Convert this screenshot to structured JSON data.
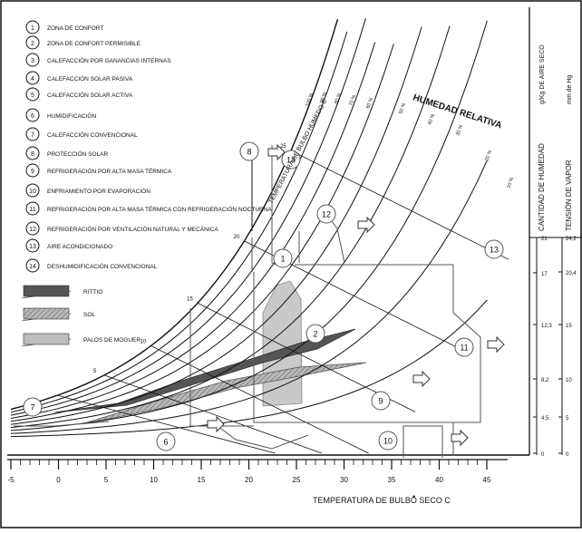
{
  "legend": [
    {
      "num": "1",
      "text": "ZONA DE CONFORT"
    },
    {
      "num": "2",
      "text": "ZONA DE CONFORT PERMISIBLE"
    },
    {
      "num": "3",
      "text": "CALEFACCIÓN POR GANANCIAS INTERNAS"
    },
    {
      "num": "4",
      "text": "CALEFACCIÓN SOLAR PASIVA"
    },
    {
      "num": "5",
      "text": "CALEFACCIÓN SOLAR ACTIVA"
    },
    {
      "num": "6",
      "text": "HUMIDIFICACIÓN"
    },
    {
      "num": "7",
      "text": "CALEFACCIÓN CONVENCIONAL"
    },
    {
      "num": "8",
      "text": "PROTECCIÓN SOLAR"
    },
    {
      "num": "9",
      "text": "REFRIGERACIÓN POR ALTA MASA TÉRMICA"
    },
    {
      "num": "10",
      "text": "ENFRIAMIENTO POR EVAPORACIÓN"
    },
    {
      "num": "11",
      "text": "REFRIGERACIÓN POR ALTA MASA TÉRMICA CON REFRIGERACIÓN NOCTURNA"
    },
    {
      "num": "12",
      "text": "REFRIGERACIÓN POR VENTILACIÓN NATURAL Y MECÁNICA"
    },
    {
      "num": "13",
      "text": "AIRE ACONDICIONADO"
    },
    {
      "num": "14",
      "text": "DESHUMIDIFICACIÓN CONVENCIONAL"
    }
  ],
  "shade_legend": [
    {
      "label": "RITTIO",
      "color": "#555555"
    },
    {
      "label": "SOL",
      "color": "#8a8a8a"
    },
    {
      "label": "PALOS DE MOGUER",
      "color": "#bdbdbd"
    }
  ],
  "chart_zone_labels": [
    "1",
    "2",
    "6",
    "7",
    "8",
    "9",
    "10",
    "11",
    "12",
    "13",
    "14"
  ],
  "xaxis": {
    "title": "TEMPERATURA DE BULBO SECO  C",
    "ticks": [
      "-5",
      "0",
      "5",
      "10",
      "15",
      "20",
      "25",
      "30",
      "35",
      "40",
      "45"
    ]
  },
  "curve_title": "HUMEDAD RELATIVA",
  "wet_bulb_label": "TEMPERATURA DE BULBO HÚMEDO  C",
  "rh_labels": [
    "100 %",
    "90 %",
    "80 %",
    "70 %",
    "60 %",
    "50 %",
    "40 %",
    "30 %",
    "20 %",
    "10 %"
  ],
  "right_axis_1": {
    "title": "CANTIDAD DE HUMEDAD",
    "unit": "g/Kg DE AIRE SECO",
    "ticks": [
      "21",
      "17",
      "12,3",
      "8,2",
      "4,5",
      "0"
    ]
  },
  "right_axis_2": {
    "title": "TENSIÓN DE VAPOR",
    "unit": "mm de Hg",
    "ticks": [
      "24,2",
      "20,4",
      "15",
      "10",
      "5",
      "0"
    ]
  },
  "wb_ticks": [
    "5",
    "10",
    "15",
    "20",
    "25"
  ],
  "colors": {
    "ink": "#111111",
    "dark": "#555555",
    "medium": "#8a8a8a",
    "light": "#bdbdbd"
  }
}
